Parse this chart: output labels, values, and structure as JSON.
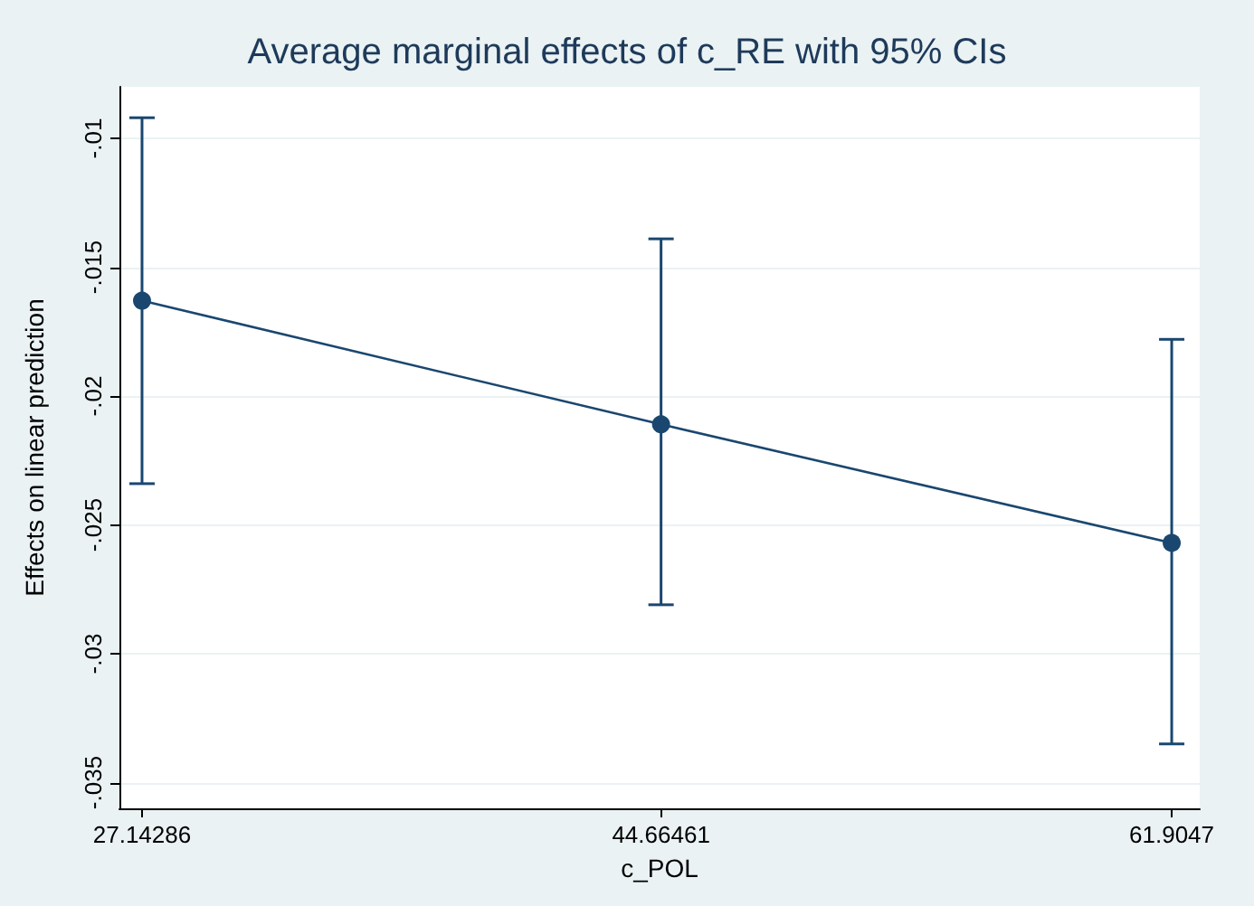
{
  "chart_data": {
    "type": "line",
    "title": "Average marginal effects of c_RE with 95% CIs",
    "xlabel": "c_POL",
    "ylabel": "Effects on linear prediction",
    "x": [
      27.14286,
      44.66461,
      61.9047
    ],
    "series": [
      {
        "color": "#1a476f",
        "values": [
          -0.0163,
          -0.0211,
          -0.0257
        ],
        "errors": [
          [
            -0.0234,
            -0.0092
          ],
          [
            -0.0281,
            -0.0139
          ],
          [
            -0.0335,
            -0.0178
          ]
        ]
      }
    ],
    "xlim": [
      26.38,
      62.85
    ],
    "xticks": [
      27.14286,
      44.66461,
      61.9047
    ],
    "ylim": [
      -0.036,
      -0.008
    ],
    "yticks": [
      {
        "value": -0.035,
        "label": "-.035"
      },
      {
        "value": -0.03,
        "label": "-.03"
      },
      {
        "value": -0.025,
        "label": "-.025"
      },
      {
        "value": -0.02,
        "label": "-.02"
      },
      {
        "value": -0.015,
        "label": "-.015"
      },
      {
        "value": -0.01,
        "label": "-.01"
      }
    ],
    "grid": "y",
    "marker": "circle",
    "line_style": "solid"
  }
}
